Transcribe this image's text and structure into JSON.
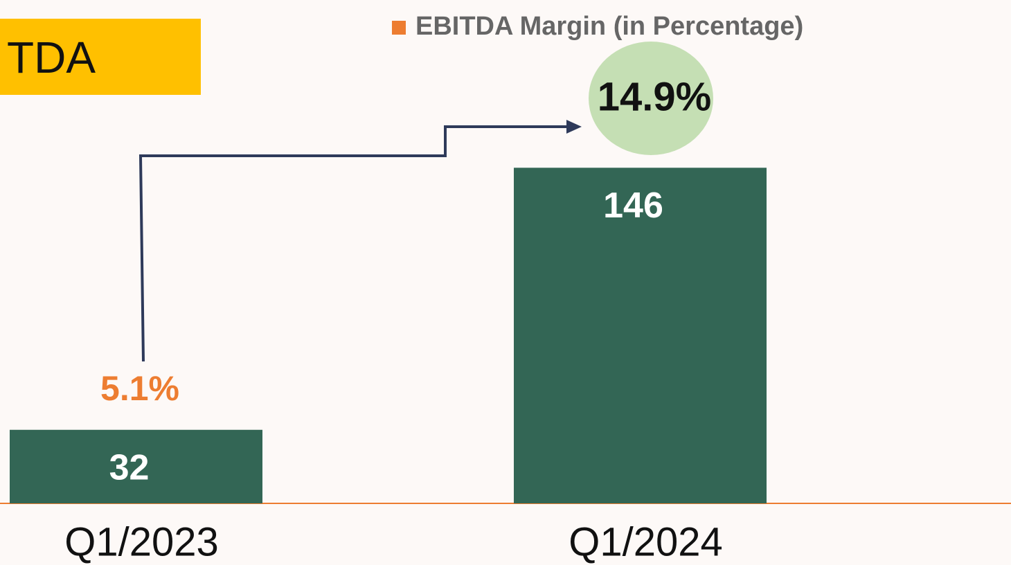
{
  "chart_data": {
    "type": "bar",
    "title": "TDA",
    "categories": [
      "Q1/2023",
      "Q1/2024"
    ],
    "values": [
      32,
      146
    ],
    "color": "#336655",
    "margin": {
      "name": "EBITDA Margin (in Percentage)",
      "color": "#ed7d31",
      "values": [
        5.1,
        14.9
      ],
      "value_labels": [
        "5.1%",
        "14.9%"
      ]
    }
  }
}
